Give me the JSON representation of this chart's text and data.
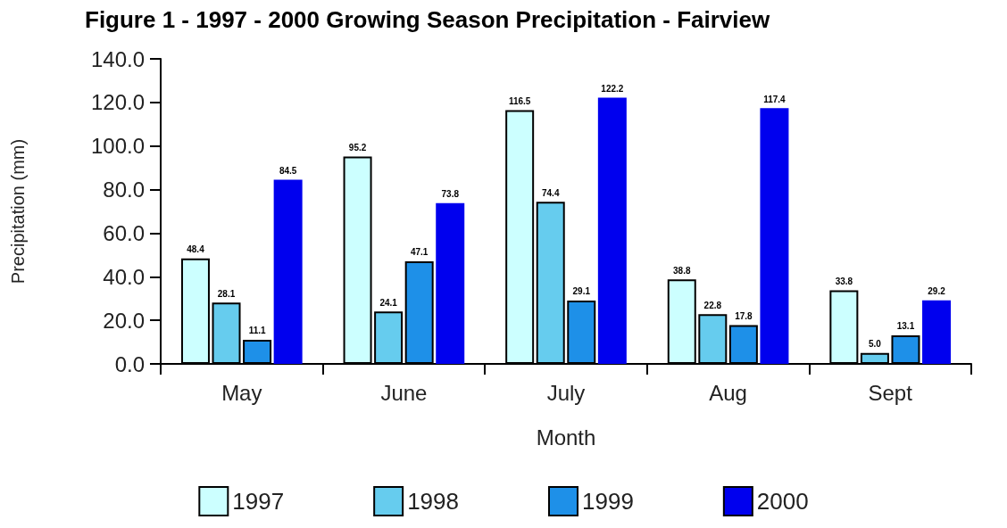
{
  "chart_data": {
    "type": "bar",
    "title": "Figure 1 - 1997 - 2000 Growing Season Precipitation - Fairview",
    "xlabel": "Month",
    "ylabel": "Precipitation (mm)",
    "categories": [
      "May",
      "June",
      "July",
      "Aug",
      "Sept"
    ],
    "series": [
      {
        "name": "1997",
        "color": "#ccffff",
        "values": [
          48.4,
          95.2,
          116.5,
          38.8,
          33.8
        ],
        "value_labels": [
          "48.4",
          "95.2",
          "116.5",
          "38.8",
          "33.8"
        ]
      },
      {
        "name": "1998",
        "color": "#66ccee",
        "values": [
          28.1,
          24.1,
          74.4,
          22.8,
          5.0
        ],
        "value_labels": [
          "28.1",
          "24.1",
          "74.4",
          "22.8",
          "5.0"
        ]
      },
      {
        "name": "1999",
        "color": "#1e90e8",
        "values": [
          11.1,
          47.1,
          29.1,
          17.8,
          13.1
        ],
        "value_labels": [
          "11.1",
          "47.1",
          "29.1",
          "17.8",
          "13.1"
        ]
      },
      {
        "name": "2000",
        "color": "#0000ee",
        "values": [
          84.5,
          73.8,
          122.2,
          117.4,
          29.2
        ],
        "value_labels": [
          "84.5",
          "73.8",
          "122.2",
          "117.4",
          "29.2"
        ]
      }
    ],
    "ylim": [
      0,
      140
    ],
    "yticks": [
      {
        "value": 0,
        "label": "0.0"
      },
      {
        "value": 20,
        "label": "20.0"
      },
      {
        "value": 40,
        "label": "40.0"
      },
      {
        "value": 60,
        "label": "60.0"
      },
      {
        "value": 80,
        "label": "80.0"
      },
      {
        "value": 100,
        "label": "100.0"
      },
      {
        "value": 120,
        "label": "120.0"
      },
      {
        "value": 140,
        "label": "140.0"
      }
    ],
    "grid": false,
    "legend": "bottom"
  }
}
